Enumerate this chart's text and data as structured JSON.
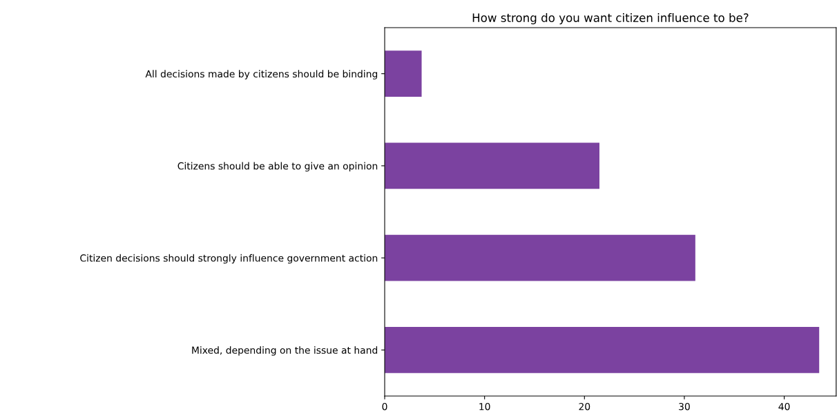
{
  "chart_data": {
    "type": "bar",
    "orientation": "horizontal",
    "title": "How strong do you want citizen influence to be?",
    "categories": [
      "All decisions made by citizens should be binding",
      "Citizens should be able to give an opinion",
      "Citizen decisions should strongly influence government action",
      "Mixed, depending on the issue at hand"
    ],
    "values": [
      3.7,
      21.5,
      31.1,
      43.5
    ],
    "color": "#7b42a0",
    "xlim": [
      0,
      45.2
    ],
    "xticks": [
      0,
      10,
      20,
      30,
      40
    ],
    "grid": false
  }
}
